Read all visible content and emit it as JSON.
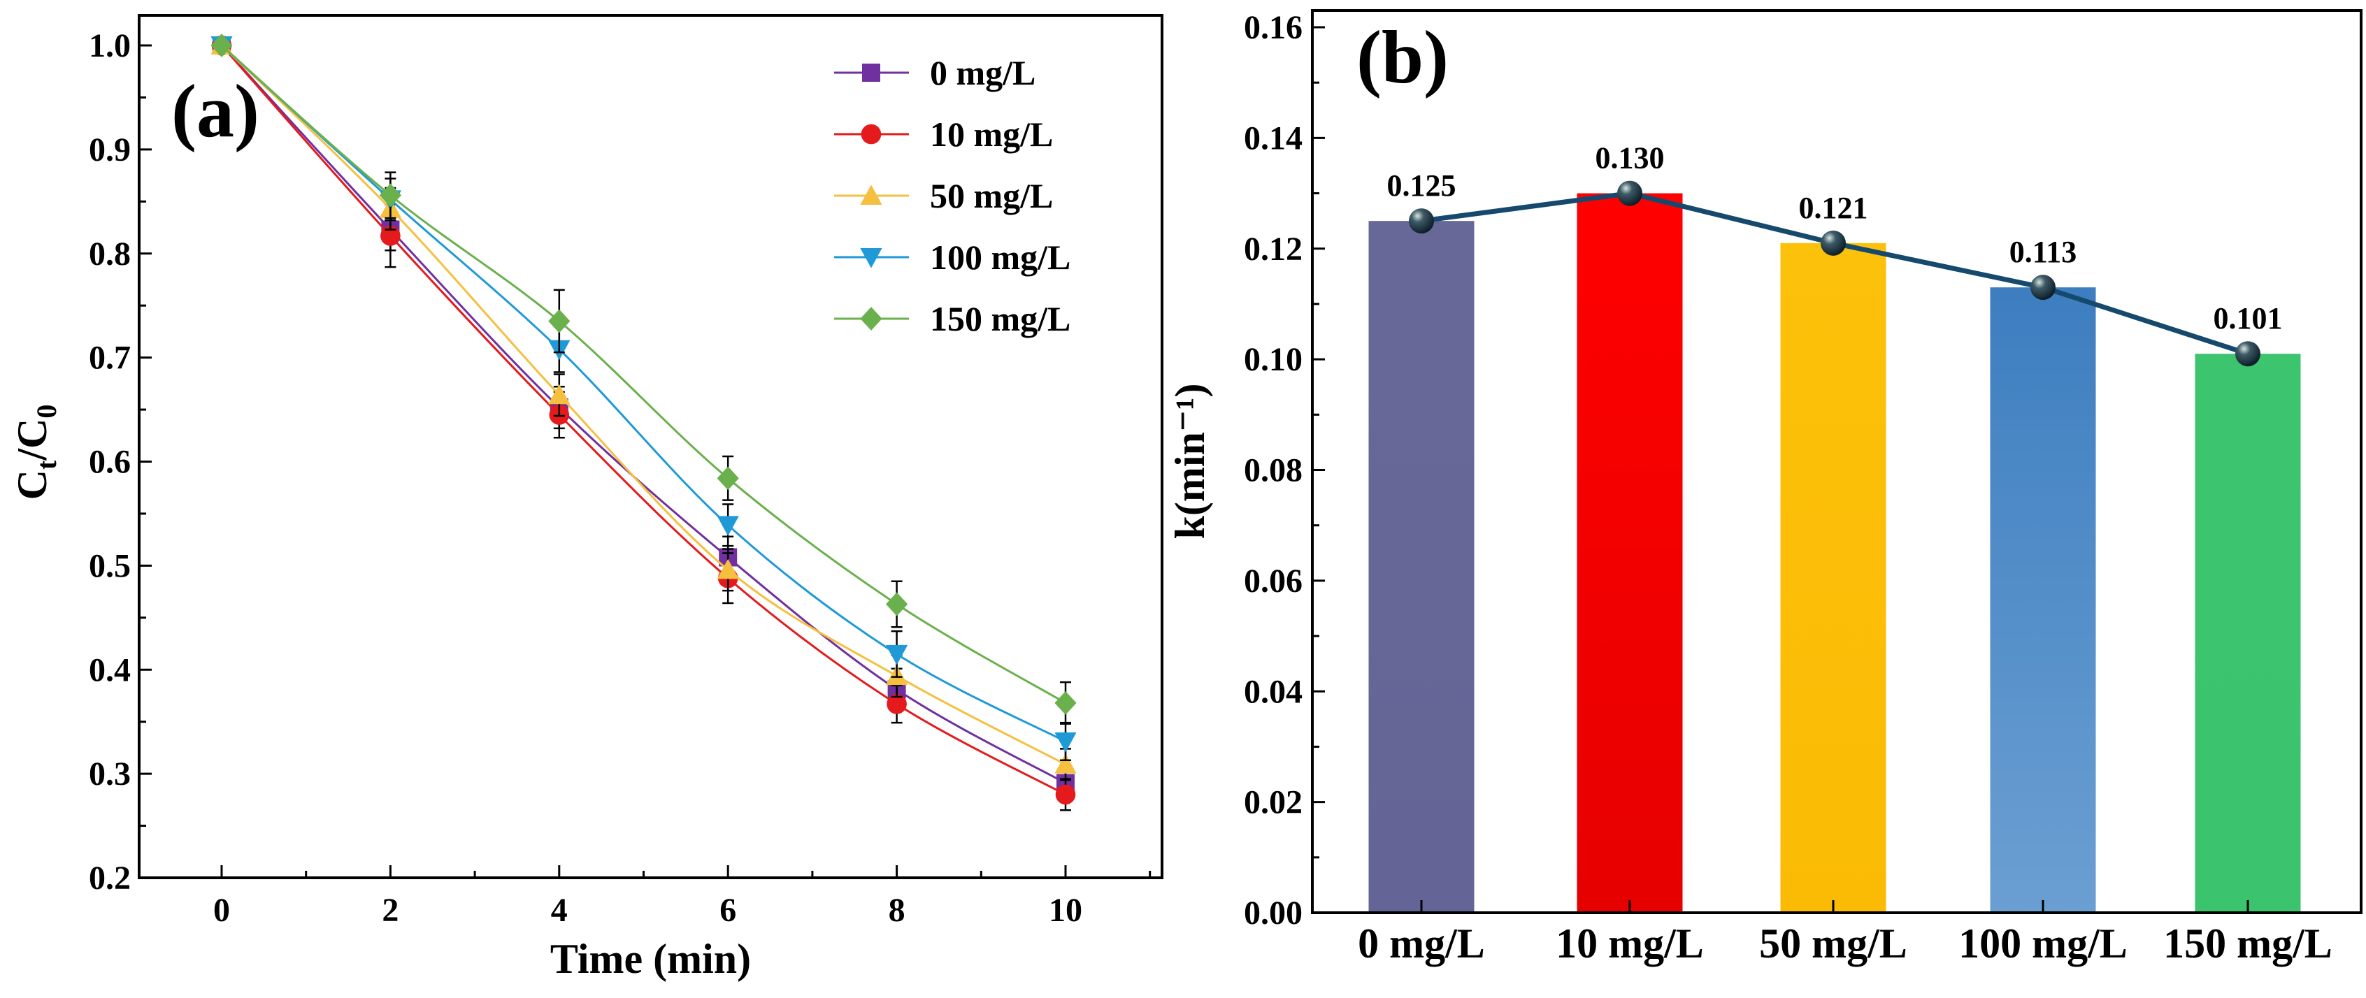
{
  "chart_data": [
    {
      "type": "line",
      "panel_label": "(a)",
      "xlabel": "Time (min)",
      "ylabel": "Ct/C0",
      "ylabel_main": "C",
      "ylabel_sub1": "t",
      "ylabel_mid": "/C",
      "ylabel_sub2": "0",
      "xlim": [
        -1,
        12
      ],
      "ylim": [
        0.2,
        1.0
      ],
      "x": [
        0,
        2,
        4,
        6,
        8,
        10
      ],
      "xticks": [
        "0",
        "2",
        "4",
        "6",
        "8",
        "10"
      ],
      "yticks": [
        "0.2",
        "0.3",
        "0.4",
        "0.5",
        "0.6",
        "0.7",
        "0.8",
        "0.9",
        "1.0"
      ],
      "legend_position": "top-right",
      "series": [
        {
          "name": "0 mg/L",
          "marker": "square",
          "color": "#7030a0",
          "values": [
            1.0,
            0.823,
            0.652,
            0.508,
            0.381,
            0.291
          ],
          "error": [
            0,
            0.02,
            0.02,
            0.02,
            0.02,
            0.015
          ]
        },
        {
          "name": "10 mg/L",
          "marker": "circle",
          "color": "#e41a1c",
          "values": [
            1.0,
            0.817,
            0.645,
            0.488,
            0.367,
            0.28
          ],
          "error": [
            0,
            0.03,
            0.022,
            0.024,
            0.018,
            0.015
          ]
        },
        {
          "name": "50 mg/L",
          "marker": "triangle-up",
          "color": "#f5c040",
          "values": [
            1.0,
            0.843,
            0.664,
            0.496,
            0.394,
            0.309
          ],
          "error": [
            0,
            0.02,
            0.02,
            0.02,
            0.02,
            0.015
          ]
        },
        {
          "name": "100 mg/L",
          "marker": "triangle-down",
          "color": "#1f9ad6",
          "values": [
            1.0,
            0.852,
            0.708,
            0.539,
            0.415,
            0.331
          ],
          "error": [
            0,
            0.02,
            0.022,
            0.02,
            0.022,
            0.018
          ]
        },
        {
          "name": "150 mg/L",
          "marker": "diamond",
          "color": "#6ab04c",
          "values": [
            1.0,
            0.856,
            0.735,
            0.584,
            0.463,
            0.368
          ],
          "error": [
            0,
            0.022,
            0.03,
            0.021,
            0.022,
            0.02
          ]
        }
      ]
    },
    {
      "type": "bar",
      "panel_label": "(b)",
      "xlabel": "",
      "ylabel": "k(min⁻¹)",
      "ylim": [
        0,
        0.16
      ],
      "yticks": [
        "0.00",
        "0.02",
        "0.04",
        "0.06",
        "0.08",
        "0.10",
        "0.12",
        "0.14",
        "0.16"
      ],
      "categories": [
        "0 mg/L",
        "10 mg/L",
        "50 mg/L",
        "100 mg/L",
        "150 mg/L"
      ],
      "values": [
        0.125,
        0.13,
        0.121,
        0.113,
        0.101
      ],
      "data_labels": [
        "0.125",
        "0.130",
        "0.121",
        "0.113",
        "0.101"
      ],
      "colors": [
        [
          "#686898",
          "#646496"
        ],
        [
          "#ff0000",
          "#e60000"
        ],
        [
          "#fcc10a",
          "#fbbb05"
        ],
        [
          "#3d7ec0",
          "#6b9fd2"
        ],
        [
          "#3cc46e",
          "#3bc36d"
        ]
      ],
      "overlay_line_color": "#154a6e"
    }
  ]
}
